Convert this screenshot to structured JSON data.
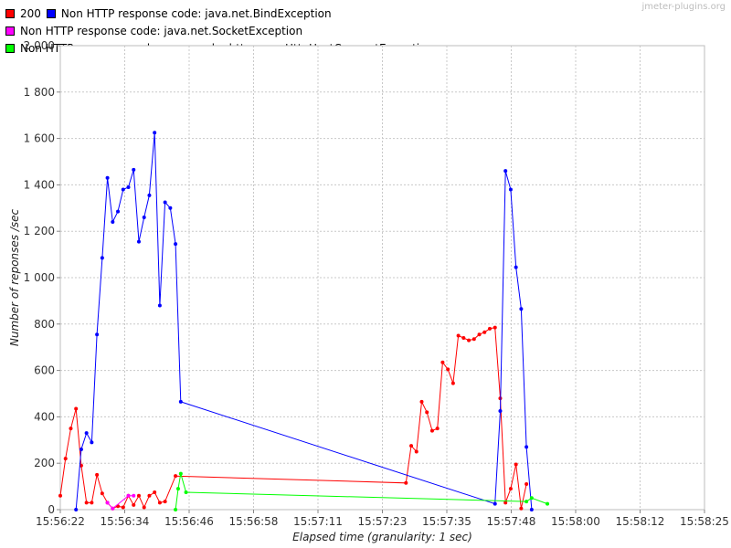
{
  "watermark": "jmeter-plugins.org",
  "chart_data": {
    "type": "line",
    "title": "",
    "xlabel": "Elapsed time (granularity: 1 sec)",
    "ylabel": "Number of reponses /sec",
    "ylim": [
      0,
      2000
    ],
    "y_ticks": [
      "0",
      "200",
      "400",
      "600",
      "800",
      "1 000",
      "1 200",
      "1 400",
      "1 600",
      "1 800",
      "2 000"
    ],
    "x_ticks": [
      "15:56:22",
      "15:56:34",
      "15:56:46",
      "15:56:58",
      "15:57:11",
      "15:57:23",
      "15:57:35",
      "15:57:48",
      "15:58:00",
      "15:58:12",
      "15:58:25"
    ],
    "x_unit": "seconds after 15:56:22",
    "xlim": [
      0,
      123
    ],
    "grid": true,
    "legend_position": "top-left",
    "series": [
      {
        "name": "200",
        "color": "#ff0000",
        "points": [
          [
            0,
            60
          ],
          [
            1,
            220
          ],
          [
            2,
            350
          ],
          [
            3,
            435
          ],
          [
            4,
            190
          ],
          [
            5,
            30
          ],
          [
            6,
            30
          ],
          [
            7,
            150
          ],
          [
            8,
            70
          ],
          [
            9,
            30
          ],
          [
            10,
            5
          ],
          [
            11,
            15
          ],
          [
            12,
            10
          ],
          [
            13,
            60
          ],
          [
            14,
            20
          ],
          [
            15,
            60
          ],
          [
            16,
            10
          ],
          [
            17,
            60
          ],
          [
            18,
            75
          ],
          [
            19,
            30
          ],
          [
            20,
            35
          ],
          [
            22,
            145
          ],
          [
            66,
            115
          ],
          [
            67,
            275
          ],
          [
            68,
            250
          ],
          [
            69,
            465
          ],
          [
            70,
            420
          ],
          [
            71,
            340
          ],
          [
            72,
            350
          ],
          [
            73,
            635
          ],
          [
            74,
            605
          ],
          [
            75,
            545
          ],
          [
            76,
            750
          ],
          [
            77,
            740
          ],
          [
            78,
            730
          ],
          [
            79,
            735
          ],
          [
            80,
            755
          ],
          [
            81,
            765
          ],
          [
            82,
            780
          ],
          [
            83,
            785
          ],
          [
            84,
            480
          ],
          [
            85,
            30
          ],
          [
            86,
            90
          ],
          [
            87,
            195
          ],
          [
            88,
            5
          ],
          [
            89,
            110
          ]
        ]
      },
      {
        "name": "Non HTTP response code: java.net.BindException",
        "color": "#0000ff",
        "points": [
          [
            3,
            0
          ],
          [
            4,
            260
          ],
          [
            5,
            330
          ],
          [
            6,
            290
          ],
          [
            7,
            755
          ],
          [
            8,
            1085
          ],
          [
            9,
            1430
          ],
          [
            10,
            1240
          ],
          [
            11,
            1285
          ],
          [
            12,
            1380
          ],
          [
            13,
            1390
          ],
          [
            14,
            1465
          ],
          [
            15,
            1155
          ],
          [
            16,
            1260
          ],
          [
            17,
            1355
          ],
          [
            18,
            1625
          ],
          [
            19,
            880
          ],
          [
            20,
            1325
          ],
          [
            21,
            1300
          ],
          [
            22,
            1145
          ],
          [
            23,
            465
          ],
          [
            83,
            25
          ],
          [
            84,
            425
          ],
          [
            85,
            1460
          ],
          [
            86,
            1380
          ],
          [
            87,
            1045
          ],
          [
            88,
            865
          ],
          [
            89,
            270
          ],
          [
            90,
            0
          ]
        ]
      },
      {
        "name": "Non HTTP response code: java.net.SocketException",
        "color": "#ff00ff",
        "points": [
          [
            9,
            30
          ],
          [
            10,
            5
          ],
          [
            13,
            60
          ],
          [
            14,
            60
          ]
        ]
      },
      {
        "name": "Non HTTP response code: org.apache.http.conn.HttpHostConnectException",
        "color": "#00ff00",
        "points": [
          [
            22,
            0
          ],
          [
            22.5,
            90
          ],
          [
            23,
            155
          ],
          [
            24,
            75
          ],
          [
            89,
            35
          ],
          [
            90,
            50
          ],
          [
            93,
            25
          ]
        ]
      }
    ]
  }
}
